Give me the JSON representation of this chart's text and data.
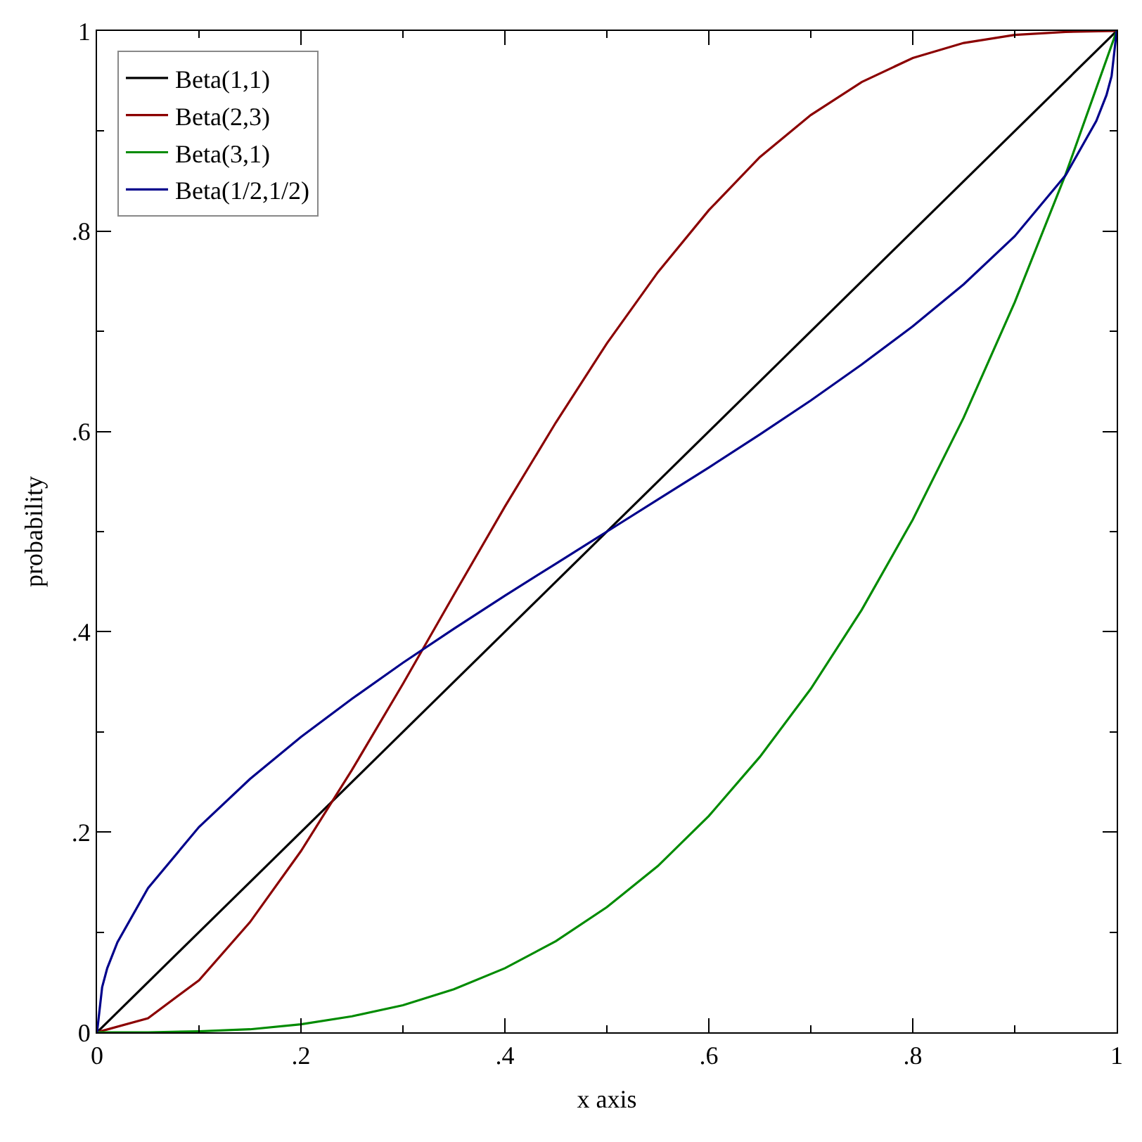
{
  "chart_data": {
    "type": "line",
    "xlabel": "x axis",
    "ylabel": "probability",
    "xlim": [
      0,
      1
    ],
    "ylim": [
      0,
      1
    ],
    "xticks": [
      0,
      {
        "value": 0.1,
        "label": null
      },
      {
        "value": 0.2,
        "label": ".2"
      },
      {
        "value": 0.3,
        "label": null
      },
      {
        "value": 0.4,
        "label": ".4"
      },
      {
        "value": 0.5,
        "label": null
      },
      {
        "value": 0.6,
        "label": ".6"
      },
      {
        "value": 0.7,
        "label": null
      },
      {
        "value": 0.8,
        "label": ".8"
      },
      {
        "value": 0.9,
        "label": null
      },
      1
    ],
    "yticks": [
      0,
      {
        "value": 0.1,
        "label": null
      },
      {
        "value": 0.2,
        "label": ".2"
      },
      {
        "value": 0.3,
        "label": null
      },
      {
        "value": 0.4,
        "label": ".4"
      },
      {
        "value": 0.5,
        "label": null
      },
      {
        "value": 0.6,
        "label": ".6"
      },
      {
        "value": 0.7,
        "label": null
      },
      {
        "value": 0.8,
        "label": ".8"
      },
      {
        "value": 0.9,
        "label": null
      },
      1
    ],
    "legend": "top left",
    "grid": false,
    "marker": "none",
    "line_style": "solid",
    "series": [
      {
        "name": "Beta(1,1)",
        "color": "#000000",
        "x": [
          0,
          1
        ],
        "values": [
          0,
          1
        ]
      },
      {
        "name": "Beta(2,3)",
        "color": "#8b0000",
        "x": [
          0,
          0.05,
          0.1,
          0.15,
          0.2,
          0.25,
          0.3,
          0.35,
          0.4,
          0.45,
          0.5,
          0.55,
          0.6,
          0.65,
          0.7,
          0.75,
          0.8,
          0.85,
          0.9,
          0.95,
          1
        ],
        "values": [
          0,
          0.014,
          0.052,
          0.11,
          0.181,
          0.262,
          0.348,
          0.437,
          0.525,
          0.609,
          0.688,
          0.759,
          0.821,
          0.874,
          0.916,
          0.949,
          0.973,
          0.988,
          0.996,
          0.999,
          1
        ]
      },
      {
        "name": "Beta(3,1)",
        "color": "#008b00",
        "x": [
          0,
          0.05,
          0.1,
          0.15,
          0.2,
          0.25,
          0.3,
          0.35,
          0.4,
          0.45,
          0.5,
          0.55,
          0.6,
          0.65,
          0.7,
          0.75,
          0.8,
          0.85,
          0.9,
          0.95,
          1
        ],
        "values": [
          0,
          0.0,
          0.001,
          0.003,
          0.008,
          0.016,
          0.027,
          0.043,
          0.064,
          0.091,
          0.125,
          0.166,
          0.216,
          0.275,
          0.343,
          0.422,
          0.512,
          0.614,
          0.729,
          0.857,
          1
        ]
      },
      {
        "name": "Beta(1/2,1/2)",
        "color": "#00008b",
        "x": [
          0,
          0.005,
          0.01,
          0.02,
          0.05,
          0.1,
          0.15,
          0.2,
          0.25,
          0.3,
          0.35,
          0.4,
          0.45,
          0.5,
          0.55,
          0.6,
          0.65,
          0.7,
          0.75,
          0.8,
          0.85,
          0.9,
          0.95,
          0.98,
          0.99,
          0.995,
          1
        ],
        "values": [
          0,
          0.045,
          0.064,
          0.09,
          0.144,
          0.205,
          0.253,
          0.295,
          0.333,
          0.369,
          0.403,
          0.436,
          0.468,
          0.5,
          0.532,
          0.564,
          0.597,
          0.631,
          0.667,
          0.705,
          0.747,
          0.795,
          0.856,
          0.91,
          0.936,
          0.955,
          1
        ]
      }
    ]
  }
}
